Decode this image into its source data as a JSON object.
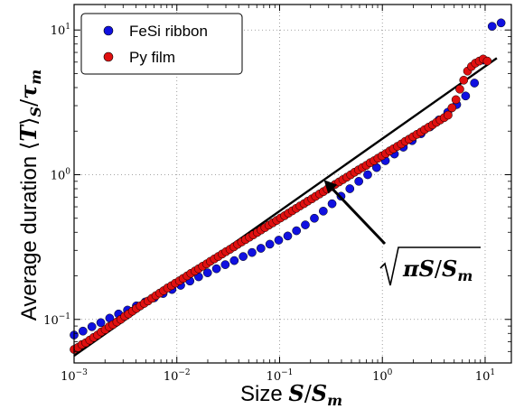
{
  "chart_data": {
    "type": "scatter",
    "xscale": "log",
    "yscale": "log",
    "xlim": [
      0.001,
      18
    ],
    "ylim": [
      0.05,
      15
    ],
    "grid": true,
    "xlabel": "Size S/S_m",
    "ylabel": "Average duration ⟨T⟩_S/τ_m",
    "x_ticks": [
      {
        "value": 0.001,
        "base": "10",
        "exp": "−3"
      },
      {
        "value": 0.01,
        "base": "10",
        "exp": "−2"
      },
      {
        "value": 0.1,
        "base": "10",
        "exp": "−1"
      },
      {
        "value": 1,
        "base": "10",
        "exp": "0"
      },
      {
        "value": 10,
        "base": "10",
        "exp": "1"
      }
    ],
    "y_ticks": [
      {
        "value": 0.1,
        "base": "10",
        "exp": "−1"
      },
      {
        "value": 1,
        "base": "10",
        "exp": "0"
      },
      {
        "value": 10,
        "base": "10",
        "exp": "1"
      }
    ],
    "legend": {
      "placement": "upper-left"
    },
    "series": [
      {
        "name": "FeSi ribbon",
        "color": "#1010e0",
        "x": [
          0.001,
          0.00122,
          0.00149,
          0.00182,
          0.00222,
          0.00271,
          0.00331,
          0.00404,
          0.00493,
          0.00602,
          0.00735,
          0.00897,
          0.0109,
          0.0134,
          0.0163,
          0.0199,
          0.0243,
          0.0296,
          0.0362,
          0.0442,
          0.0539,
          0.0658,
          0.0803,
          0.098,
          0.12,
          0.146,
          0.178,
          0.218,
          0.266,
          0.324,
          0.396,
          0.483,
          0.59,
          0.72,
          0.879,
          1.07,
          1.31,
          1.6,
          1.95,
          2.38,
          2.91,
          3.55,
          4.33,
          5.29,
          6.46,
          7.88,
          9.62,
          11.7,
          14.3
        ],
        "y": [
          0.078,
          0.083,
          0.089,
          0.095,
          0.102,
          0.109,
          0.116,
          0.124,
          0.132,
          0.141,
          0.151,
          0.161,
          0.172,
          0.184,
          0.197,
          0.21,
          0.224,
          0.239,
          0.255,
          0.272,
          0.29,
          0.31,
          0.331,
          0.353,
          0.377,
          0.41,
          0.45,
          0.5,
          0.56,
          0.63,
          0.71,
          0.8,
          0.9,
          1.0,
          1.12,
          1.25,
          1.39,
          1.55,
          1.72,
          1.92,
          2.14,
          2.39,
          2.7,
          3.05,
          3.5,
          4.3,
          6.2,
          10.6,
          11.2
        ]
      },
      {
        "name": "Py film",
        "color": "#e01010",
        "x": [
          0.001,
          0.00109,
          0.00119,
          0.0013,
          0.00142,
          0.00155,
          0.00169,
          0.00184,
          0.00201,
          0.00219,
          0.00239,
          0.00261,
          0.00285,
          0.00311,
          0.00339,
          0.0037,
          0.00404,
          0.00441,
          0.00481,
          0.00525,
          0.00573,
          0.00625,
          0.00682,
          0.00744,
          0.00812,
          0.00886,
          0.00967,
          0.0106,
          0.0115,
          0.0126,
          0.0137,
          0.015,
          0.0163,
          0.0178,
          0.0195,
          0.0212,
          0.0232,
          0.0253,
          0.0276,
          0.0301,
          0.0329,
          0.0359,
          0.0391,
          0.0427,
          0.0466,
          0.0509,
          0.0555,
          0.0606,
          0.0661,
          0.0721,
          0.0787,
          0.0859,
          0.0937,
          0.102,
          0.112,
          0.122,
          0.133,
          0.145,
          0.158,
          0.173,
          0.188,
          0.206,
          0.224,
          0.245,
          0.267,
          0.291,
          0.318,
          0.347,
          0.379,
          0.413,
          0.451,
          0.492,
          0.537,
          0.586,
          0.639,
          0.698,
          0.761,
          0.831,
          0.906,
          0.989,
          1.08,
          1.18,
          1.28,
          1.4,
          1.53,
          1.67,
          1.82,
          1.99,
          2.17,
          2.37,
          2.58,
          2.82,
          3.08,
          3.36,
          3.66,
          4.0,
          4.36,
          4.76,
          5.2,
          5.67,
          6.19,
          6.75,
          7.37,
          8.04,
          8.78,
          9.58,
          10.5
        ],
        "y": [
          0.062,
          0.064,
          0.067,
          0.069,
          0.072,
          0.075,
          0.078,
          0.082,
          0.085,
          0.089,
          0.092,
          0.096,
          0.1,
          0.105,
          0.109,
          0.114,
          0.119,
          0.124,
          0.129,
          0.134,
          0.14,
          0.146,
          0.152,
          0.158,
          0.165,
          0.171,
          0.178,
          0.185,
          0.192,
          0.2,
          0.208,
          0.216,
          0.224,
          0.233,
          0.242,
          0.252,
          0.262,
          0.272,
          0.283,
          0.294,
          0.305,
          0.317,
          0.33,
          0.343,
          0.356,
          0.37,
          0.384,
          0.399,
          0.415,
          0.431,
          0.448,
          0.465,
          0.483,
          0.502,
          0.521,
          0.542,
          0.563,
          0.585,
          0.608,
          0.631,
          0.656,
          0.681,
          0.708,
          0.736,
          0.764,
          0.794,
          0.825,
          0.857,
          0.891,
          0.925,
          0.961,
          0.999,
          1.04,
          1.08,
          1.12,
          1.16,
          1.21,
          1.25,
          1.3,
          1.35,
          1.4,
          1.46,
          1.51,
          1.57,
          1.63,
          1.7,
          1.76,
          1.83,
          1.9,
          1.97,
          2.05,
          2.13,
          2.21,
          2.3,
          2.39,
          2.48,
          2.58,
          2.9,
          3.3,
          3.9,
          4.5,
          5.2,
          5.6,
          5.9,
          6.1,
          6.3,
          6.1
        ]
      }
    ],
    "reference_line": {
      "formula": "y = sqrt(pi * x)",
      "x_range": [
        0.001,
        13
      ],
      "color": "#000000"
    },
    "annotation": {
      "text_parts": [
        "πS",
        "/",
        "S",
        "m"
      ],
      "arrow_target": {
        "x": 0.27,
        "y": 0.92
      }
    }
  }
}
